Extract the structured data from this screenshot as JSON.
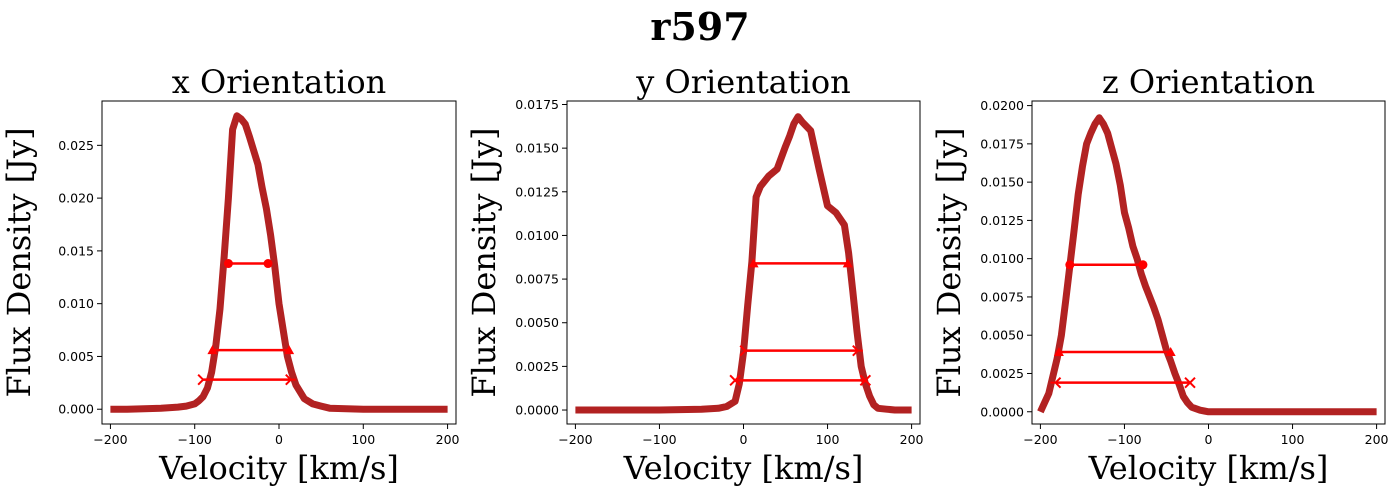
{
  "figure": {
    "title": "r597",
    "colors": {
      "spectrum": "#b22222",
      "widths": "#ff0000"
    }
  },
  "chart_data": [
    {
      "type": "line",
      "title": "x Orientation",
      "xlabel": "Velocity [km/s]",
      "ylabel": "Flux Density [Jy]",
      "xlim": [
        -210,
        210
      ],
      "ylim": [
        -0.0014,
        0.0292
      ],
      "xticks": [
        -200,
        -100,
        0,
        100,
        200
      ],
      "xtick_labels": [
        "−200",
        "−100",
        "0",
        "100",
        "200"
      ],
      "yticks": [
        0,
        0.005,
        0.01,
        0.015,
        0.02,
        0.025
      ],
      "ytick_labels": [
        "0.000",
        "0.005",
        "0.010",
        "0.015",
        "0.020",
        "0.025"
      ],
      "series": [
        {
          "x": [
            -200,
            -180,
            -160,
            -140,
            -120,
            -110,
            -100,
            -95,
            -90,
            -85,
            -80,
            -75,
            -70,
            -65,
            -60,
            -55,
            -50,
            -45,
            -40,
            -35,
            -30,
            -25,
            -20,
            -15,
            -10,
            -5,
            0,
            5,
            10,
            15,
            20,
            30,
            40,
            50,
            60,
            80,
            100,
            120,
            150,
            200
          ],
          "y": [
            0,
            0,
            5e-05,
            0.0001,
            0.0002,
            0.0003,
            0.0005,
            0.0008,
            0.0012,
            0.002,
            0.0035,
            0.006,
            0.0095,
            0.0145,
            0.02,
            0.0265,
            0.0278,
            0.0275,
            0.027,
            0.0258,
            0.0245,
            0.0232,
            0.021,
            0.019,
            0.0165,
            0.0135,
            0.01,
            0.0075,
            0.005,
            0.0035,
            0.0023,
            0.001,
            0.0005,
            0.0003,
            0.0001,
            5e-05,
            0,
            0,
            0,
            0
          ]
        }
      ],
      "widths": [
        {
          "y": 0.0138,
          "x0": -60,
          "x1": -13,
          "m0": "circle",
          "m1": "circle"
        },
        {
          "y": 0.0056,
          "x0": -79,
          "x1": 12,
          "m0": "triangle",
          "m1": "triangle"
        },
        {
          "y": 0.0028,
          "x0": -90,
          "x1": 14,
          "m0": "tri_right",
          "m1": "tri_right"
        }
      ]
    },
    {
      "type": "line",
      "title": "y Orientation",
      "xlabel": "Velocity [km/s]",
      "ylabel": "Flux Density [Jy]",
      "xlim": [
        -210,
        210
      ],
      "ylim": [
        -0.0008,
        0.0177
      ],
      "xticks": [
        -200,
        -100,
        0,
        100,
        200
      ],
      "xtick_labels": [
        "−200",
        "−100",
        "0",
        "100",
        "200"
      ],
      "yticks": [
        0,
        0.0025,
        0.005,
        0.0075,
        0.01,
        0.0125,
        0.015,
        0.0175
      ],
      "ytick_labels": [
        "0.0000",
        "0.0025",
        "0.0050",
        "0.0075",
        "0.0100",
        "0.0125",
        "0.0150",
        "0.0175"
      ],
      "series": [
        {
          "x": [
            -200,
            -150,
            -100,
            -50,
            -30,
            -20,
            -10,
            -5,
            0,
            5,
            10,
            15,
            20,
            30,
            40,
            50,
            55,
            60,
            65,
            70,
            80,
            90,
            100,
            110,
            120,
            125,
            130,
            135,
            140,
            145,
            150,
            155,
            160,
            170,
            180,
            200
          ],
          "y": [
            0,
            0,
            0,
            5e-05,
            0.0001,
            0.0002,
            0.0005,
            0.0015,
            0.0033,
            0.006,
            0.0085,
            0.0122,
            0.0128,
            0.0134,
            0.0138,
            0.0151,
            0.0157,
            0.0164,
            0.0168,
            0.0165,
            0.016,
            0.0138,
            0.0117,
            0.0113,
            0.0106,
            0.009,
            0.0068,
            0.0045,
            0.0025,
            0.0015,
            0.0008,
            0.0003,
            0.0001,
            5e-05,
            0,
            0
          ]
        }
      ],
      "widths": [
        {
          "y": 0.0084,
          "x0": 12,
          "x1": 124,
          "m0": "triangle",
          "m1": "triangle"
        },
        {
          "y": 0.0034,
          "x0": 2,
          "x1": 136,
          "m0": "tri_right",
          "m1": "tri_right"
        },
        {
          "y": 0.0017,
          "x0": -10,
          "x1": 145,
          "m0": "x",
          "m1": "x"
        }
      ]
    },
    {
      "type": "line",
      "title": "z Orientation",
      "xlabel": "Velocity [km/s]",
      "ylabel": "Flux Density [Jy]",
      "xlim": [
        -210,
        210
      ],
      "ylim": [
        -0.0008,
        0.0203
      ],
      "xticks": [
        -200,
        -100,
        0,
        100,
        200
      ],
      "xtick_labels": [
        "−200",
        "−100",
        "0",
        "100",
        "200"
      ],
      "yticks": [
        0,
        0.0025,
        0.005,
        0.0075,
        0.01,
        0.0125,
        0.015,
        0.0175,
        0.02
      ],
      "ytick_labels": [
        "0.0000",
        "0.0025",
        "0.0050",
        "0.0075",
        "0.0100",
        "0.0125",
        "0.0150",
        "0.0175",
        "0.0200"
      ],
      "series": [
        {
          "x": [
            -200,
            -190,
            -180,
            -175,
            -170,
            -165,
            -160,
            -155,
            -150,
            -145,
            -140,
            -135,
            -130,
            -125,
            -120,
            -115,
            -110,
            -105,
            -100,
            -95,
            -90,
            -85,
            -80,
            -75,
            -70,
            -65,
            -60,
            -55,
            -50,
            -45,
            -40,
            -35,
            -30,
            -25,
            -20,
            -15,
            -10,
            -5,
            0,
            10,
            20,
            50,
            100,
            200
          ],
          "y": [
            0,
            0.0012,
            0.0035,
            0.005,
            0.0072,
            0.0095,
            0.0118,
            0.0142,
            0.016,
            0.0175,
            0.0182,
            0.0188,
            0.0192,
            0.0188,
            0.0182,
            0.0172,
            0.0162,
            0.0148,
            0.013,
            0.012,
            0.0108,
            0.01,
            0.009,
            0.0082,
            0.0075,
            0.0068,
            0.006,
            0.005,
            0.004,
            0.0033,
            0.0025,
            0.0018,
            0.001,
            0.0006,
            0.0003,
            0.0002,
            0.0001,
            5e-05,
            0,
            0,
            0,
            0,
            0,
            0
          ]
        }
      ],
      "widths": [
        {
          "y": 0.0096,
          "x0": -165,
          "x1": -78,
          "m0": "circle",
          "m1": "circle"
        },
        {
          "y": 0.0039,
          "x0": -178,
          "x1": -45,
          "m0": "triangle",
          "m1": "triangle"
        },
        {
          "y": 0.0019,
          "x0": -182,
          "x1": -22,
          "m0": "tri_left",
          "m1": "x"
        }
      ]
    }
  ]
}
